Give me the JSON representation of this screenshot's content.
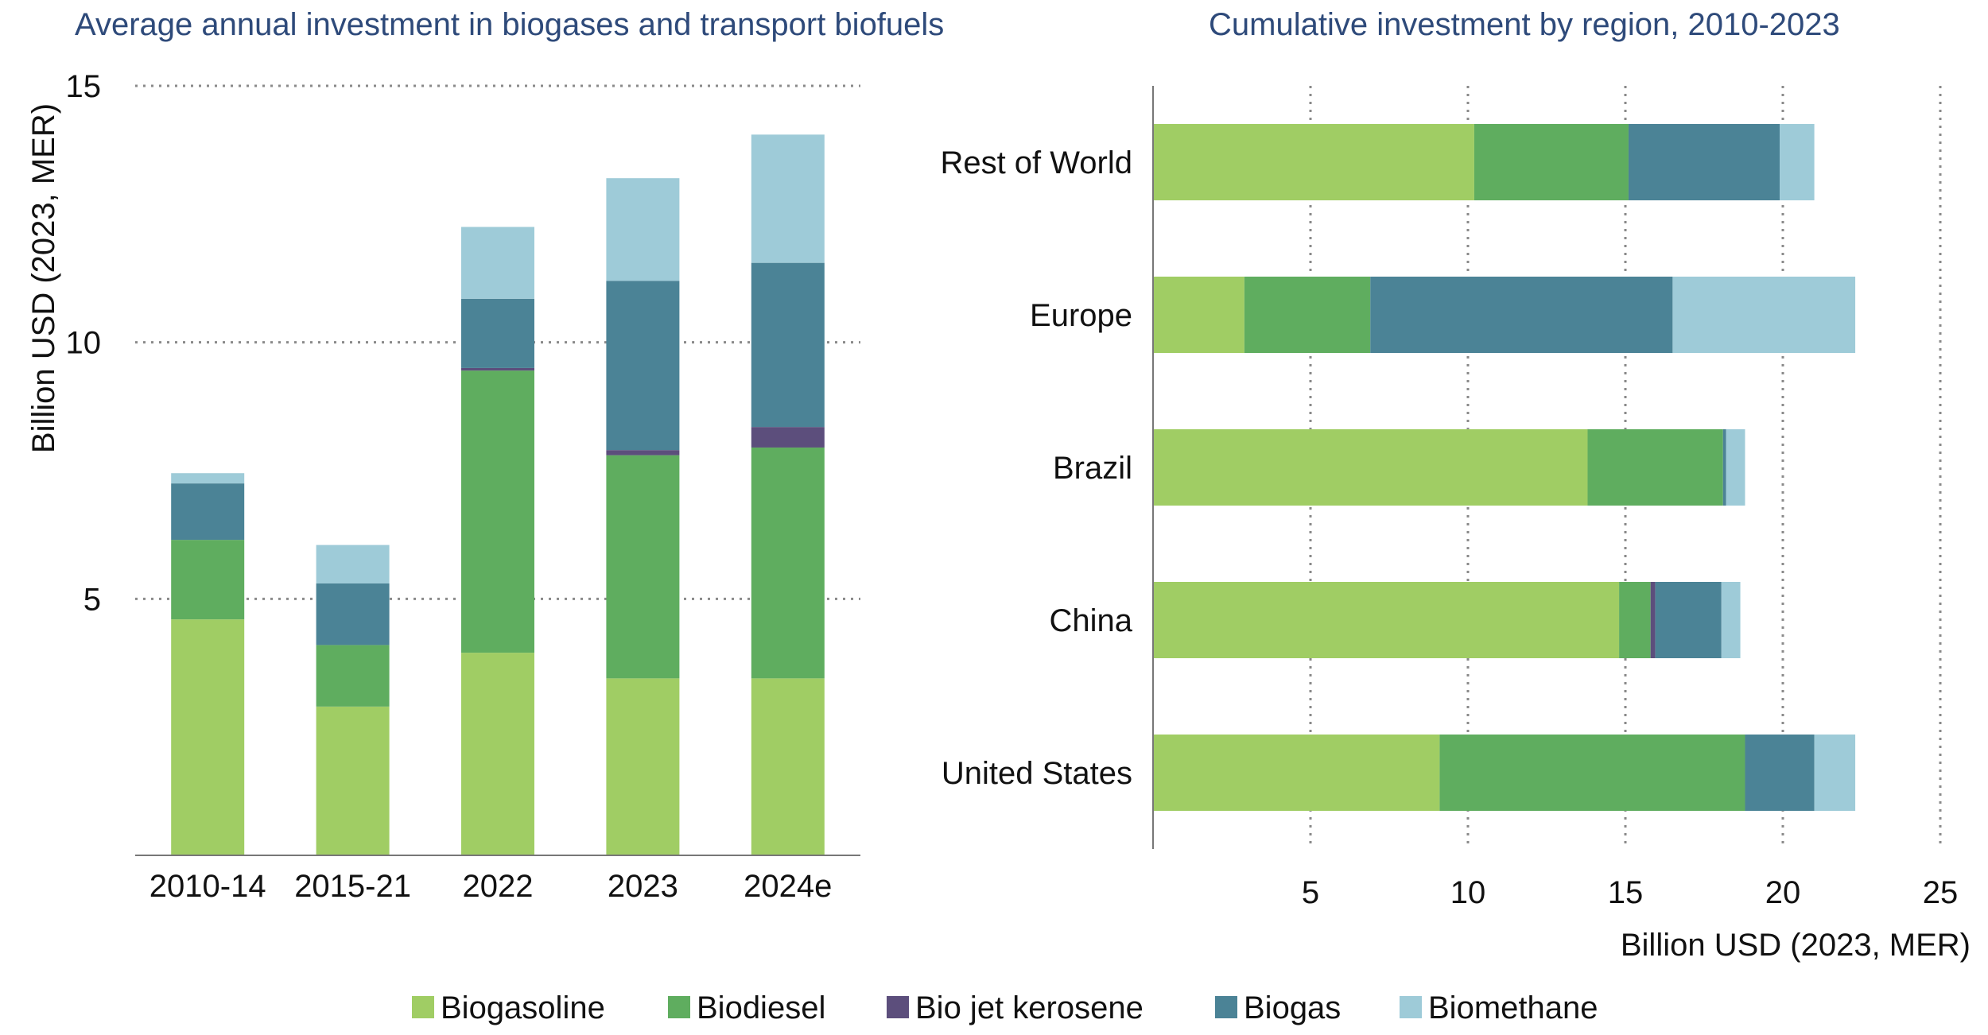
{
  "colors": {
    "Biogasoline": "#a0cd64",
    "Biodiesel": "#5fad5f",
    "Bio jet kerosene": "#5c4e7c",
    "Biogas": "#4b8396",
    "Biomethane": "#9ecbd8"
  },
  "chart_data": [
    {
      "type": "bar",
      "stacked": true,
      "orientation": "vertical",
      "title": "Average annual investment in biogases and transport biofuels",
      "xlabel": "",
      "ylabel": "Billion USD (2023, MER)",
      "ylim": [
        0,
        15
      ],
      "yticks": [
        5,
        10,
        15
      ],
      "categories": [
        "2010-14",
        "2015-21",
        "2022",
        "2023",
        "2024e"
      ],
      "series": [
        {
          "name": "Biogasoline",
          "values": [
            4.6,
            2.9,
            3.95,
            3.45,
            3.45
          ]
        },
        {
          "name": "Biodiesel",
          "values": [
            1.55,
            1.2,
            5.5,
            4.35,
            4.5
          ]
        },
        {
          "name": "Bio jet kerosene",
          "values": [
            0,
            0,
            0.05,
            0.1,
            0.4
          ]
        },
        {
          "name": "Biogas",
          "values": [
            1.1,
            1.2,
            1.35,
            3.3,
            3.2
          ]
        },
        {
          "name": "Biomethane",
          "values": [
            0.2,
            0.75,
            1.4,
            2.0,
            2.5
          ]
        }
      ]
    },
    {
      "type": "bar",
      "stacked": true,
      "orientation": "horizontal",
      "title": "Cumulative investment by region, 2010-2023",
      "xlabel": "Billion USD (2023, MER)",
      "ylabel": "",
      "xlim": [
        0,
        25
      ],
      "xticks": [
        5,
        10,
        15,
        20,
        25
      ],
      "categories": [
        "Rest of World",
        "Europe",
        "Brazil",
        "China",
        "United States"
      ],
      "series": [
        {
          "name": "Biogasoline",
          "values": [
            10.2,
            2.9,
            13.8,
            14.8,
            9.1
          ]
        },
        {
          "name": "Biodiesel",
          "values": [
            4.9,
            4.0,
            4.3,
            1.0,
            9.7
          ]
        },
        {
          "name": "Bio jet kerosene",
          "values": [
            0,
            0,
            0,
            0.15,
            0
          ]
        },
        {
          "name": "Biogas",
          "values": [
            4.8,
            9.6,
            0.1,
            2.1,
            2.2
          ]
        },
        {
          "name": "Biomethane",
          "values": [
            1.1,
            5.8,
            0.6,
            0.6,
            1.3
          ]
        }
      ]
    }
  ],
  "legend": [
    "Biogasoline",
    "Biodiesel",
    "Bio jet kerosene",
    "Biogas",
    "Biomethane"
  ]
}
